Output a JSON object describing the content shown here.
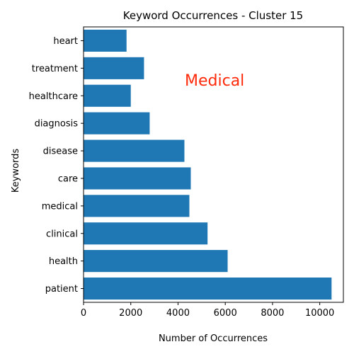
{
  "chart_data": {
    "type": "bar",
    "orientation": "horizontal",
    "title": "Keyword Occurrences - Cluster 15",
    "xlabel": "Number of Occurrences",
    "ylabel": "Keywords",
    "categories": [
      "patient",
      "health",
      "clinical",
      "medical",
      "care",
      "disease",
      "diagnosis",
      "healthcare",
      "treatment",
      "heart"
    ],
    "values": [
      10500,
      6100,
      5250,
      4480,
      4540,
      4270,
      2800,
      2000,
      2560,
      1820
    ],
    "xlim": [
      0,
      11000
    ],
    "xticks": [
      0,
      2000,
      4000,
      6000,
      8000,
      10000
    ],
    "bar_color": "#1f77b4",
    "annotation": {
      "text": "Medical",
      "color": "#ff2a0a"
    },
    "grid": false
  }
}
